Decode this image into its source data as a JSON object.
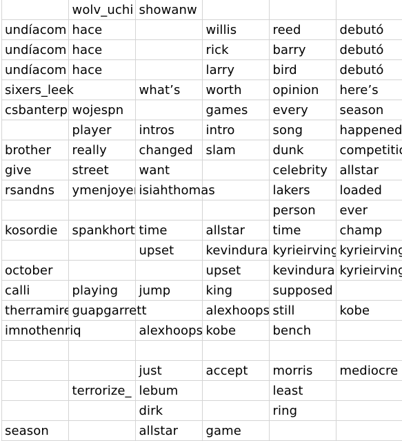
{
  "sheet": {
    "rows": [
      [
        "",
        "wolv_uchi",
        "showanw",
        "",
        "",
        ""
      ],
      [
        "undíacom",
        "hace",
        "",
        "willis",
        "reed",
        "debutó"
      ],
      [
        "undíacom",
        "hace",
        "",
        "rick",
        "barry",
        "debutó"
      ],
      [
        "undíacom",
        "hace",
        "",
        "larry",
        "bird",
        "debutó"
      ],
      [
        "sixers_leek",
        "",
        "what’s",
        "worth",
        "opinion",
        "here’s"
      ],
      [
        "csbanterp",
        "wojespn",
        "",
        "games",
        "every",
        "season"
      ],
      [
        "",
        "player",
        "intros",
        "intro",
        "song",
        "happened"
      ],
      [
        "brother",
        "really",
        "changed",
        "slam",
        "dunk",
        "competitio"
      ],
      [
        "give",
        "street",
        "want",
        "",
        "celebrity",
        "allstar"
      ],
      [
        "rsandns",
        "ymenjoyer",
        "isiahthomas",
        "",
        "lakers",
        "loaded"
      ],
      [
        "",
        "",
        "",
        "",
        "person",
        "ever"
      ],
      [
        "kosordie",
        "spankhort",
        "time",
        "allstar",
        "time",
        "champ"
      ],
      [
        "",
        "",
        "upset",
        "kevindura",
        "kyrieirving",
        "kyrieirving"
      ],
      [
        "october",
        "",
        "",
        "upset",
        "kevindura",
        "kyrieirving"
      ],
      [
        "calli",
        "playing",
        "jump",
        "king",
        "supposed",
        ""
      ],
      [
        "therramire",
        "guapgarrett",
        "",
        "alexhoops",
        "still",
        "kobe"
      ],
      [
        "imnothenriq",
        "",
        "alexhoops",
        "kobe",
        "bench",
        ""
      ],
      [
        "",
        "",
        "",
        "",
        "",
        ""
      ],
      [
        "",
        "",
        "just",
        "accept",
        "morris",
        "mediocre"
      ],
      [
        "",
        "terrorize_",
        "lebum",
        "",
        "least",
        ""
      ],
      [
        "",
        "",
        "dirk",
        "",
        "ring",
        ""
      ],
      [
        "season",
        "",
        "allstar",
        "game",
        "",
        ""
      ]
    ]
  }
}
